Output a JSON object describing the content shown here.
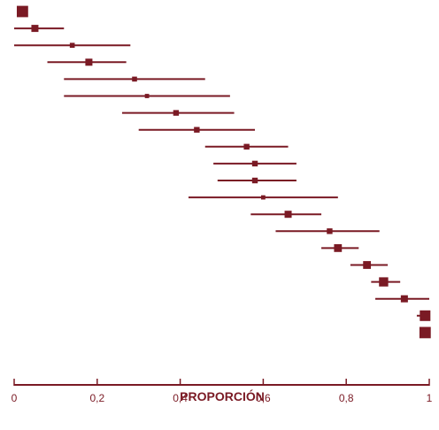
{
  "colors": {
    "primary": "#7a1a24"
  },
  "chart_data": {
    "type": "scatter",
    "title": "",
    "xlabel": "PROPORCIÓN",
    "ylabel": "",
    "xlim": [
      0,
      1
    ],
    "grid": false,
    "legend": "none",
    "x_ticks": [
      {
        "value": 0,
        "label": "0"
      },
      {
        "value": 0.2,
        "label": "0,2"
      },
      {
        "value": 0.4,
        "label": "0,4"
      },
      {
        "value": 0.6,
        "label": "0,6"
      },
      {
        "value": 0.8,
        "label": "0,8"
      },
      {
        "value": 1,
        "label": "1"
      }
    ],
    "series": [
      {
        "points": [
          {
            "estimate": 0.02,
            "lower": 0.01,
            "upper": 0.03,
            "weight": 1.6
          },
          {
            "estimate": 0.05,
            "lower": 0.0,
            "upper": 0.12,
            "weight": 1.0
          },
          {
            "estimate": 0.14,
            "lower": 0.0,
            "upper": 0.28,
            "weight": 0.7
          },
          {
            "estimate": 0.18,
            "lower": 0.08,
            "upper": 0.27,
            "weight": 1.0
          },
          {
            "estimate": 0.29,
            "lower": 0.12,
            "upper": 0.46,
            "weight": 0.7
          },
          {
            "estimate": 0.32,
            "lower": 0.12,
            "upper": 0.52,
            "weight": 0.6
          },
          {
            "estimate": 0.39,
            "lower": 0.26,
            "upper": 0.53,
            "weight": 0.8
          },
          {
            "estimate": 0.44,
            "lower": 0.3,
            "upper": 0.58,
            "weight": 0.8
          },
          {
            "estimate": 0.56,
            "lower": 0.46,
            "upper": 0.66,
            "weight": 0.8
          },
          {
            "estimate": 0.58,
            "lower": 0.48,
            "upper": 0.68,
            "weight": 0.8
          },
          {
            "estimate": 0.58,
            "lower": 0.49,
            "upper": 0.68,
            "weight": 0.8
          },
          {
            "estimate": 0.6,
            "lower": 0.42,
            "upper": 0.78,
            "weight": 0.6
          },
          {
            "estimate": 0.66,
            "lower": 0.57,
            "upper": 0.74,
            "weight": 1.0
          },
          {
            "estimate": 0.76,
            "lower": 0.63,
            "upper": 0.88,
            "weight": 0.8
          },
          {
            "estimate": 0.78,
            "lower": 0.74,
            "upper": 0.83,
            "weight": 1.1
          },
          {
            "estimate": 0.85,
            "lower": 0.81,
            "upper": 0.9,
            "weight": 1.1
          },
          {
            "estimate": 0.89,
            "lower": 0.86,
            "upper": 0.93,
            "weight": 1.3
          },
          {
            "estimate": 0.94,
            "lower": 0.87,
            "upper": 1.0,
            "weight": 1.0
          },
          {
            "estimate": 0.99,
            "lower": 0.97,
            "upper": 1.0,
            "weight": 1.5
          },
          {
            "estimate": 0.99,
            "lower": 0.98,
            "upper": 1.0,
            "weight": 1.6
          }
        ]
      }
    ]
  }
}
